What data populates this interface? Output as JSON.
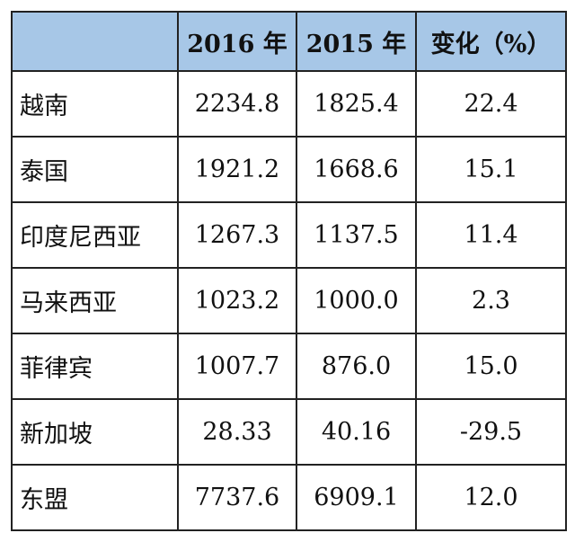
{
  "table": {
    "header": [
      "2016 年",
      "2015 年",
      "变化（%）"
    ],
    "rows": [
      [
        "越南",
        "2234.8",
        "1825.4",
        "22.4"
      ],
      [
        "泰国",
        "1921.2",
        "1668.6",
        "15.1"
      ],
      [
        "印度尼西亚",
        "1267.3",
        "1137.5",
        "11.4"
      ],
      [
        "马来西亚",
        "1023.2",
        "1000.0",
        "2.3"
      ],
      [
        "菲律宾",
        "1007.7",
        "876.0",
        "15.0"
      ],
      [
        "新加坡",
        "28.33",
        "40.16",
        "-29.5"
      ],
      [
        "东盟",
        "7737.6",
        "6909.1",
        "12.0"
      ]
    ]
  }
}
